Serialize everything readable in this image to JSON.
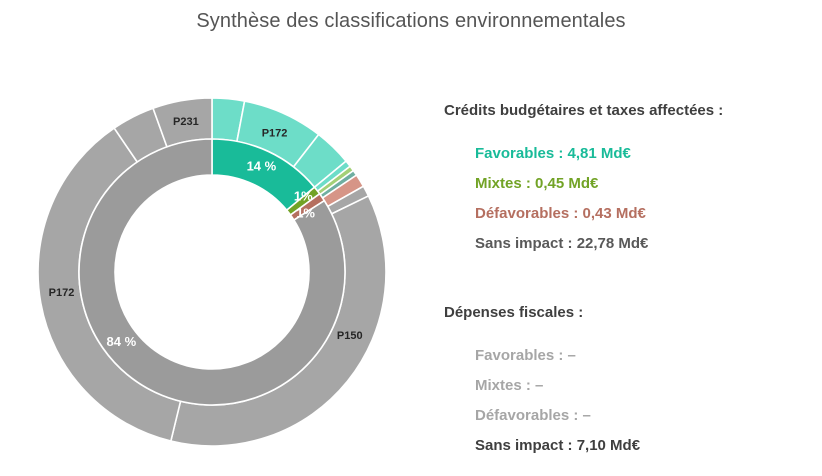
{
  "title": "Synthèse des classifications environnementales",
  "chart_data": [
    {
      "type": "pie",
      "variant": "donut-inner-ring",
      "series_name": "",
      "segments": [
        {
          "label": "14 %",
          "value": 14,
          "color": "#19BB99"
        },
        {
          "label": "1%",
          "value": 1,
          "color": "#72A326"
        },
        {
          "label": "1%",
          "value": 1,
          "color": "#B56F60"
        },
        {
          "label": "84 %",
          "value": 84,
          "color": "#9B9B9B"
        }
      ]
    },
    {
      "type": "pie",
      "variant": "donut-outer-ring",
      "segments": [
        {
          "label": "",
          "value": 3.0,
          "color": "#6DDDC8"
        },
        {
          "label": "P172",
          "value": 7.5,
          "color": "#6DDDC8"
        },
        {
          "label": "",
          "value": 3.5,
          "color": "#6DDDC8"
        },
        {
          "label": "",
          "value": 0.6,
          "color": "#6DDDC8"
        },
        {
          "label": "",
          "value": 0.5,
          "color": "#A3D077"
        },
        {
          "label": "",
          "value": 0.5,
          "color": "#6FAFA1"
        },
        {
          "label": "",
          "value": 1.2,
          "color": "#D69587"
        },
        {
          "label": "",
          "value": 1.0,
          "color": "#A6A6A6"
        },
        {
          "label": "P150",
          "value": 36.0,
          "color": "#A6A6A6"
        },
        {
          "label": "P172",
          "value": 36.7,
          "color": "#A6A6A6"
        },
        {
          "label": "",
          "value": 4.0,
          "color": "#A6A6A6"
        },
        {
          "label": "P231",
          "value": 5.5,
          "color": "#A6A6A6"
        }
      ]
    }
  ],
  "legend": {
    "credits": {
      "title": "Crédits budgétaires et taxes affectées :",
      "items": [
        {
          "text": "Favorables : 4,81 Md€",
          "color": "#19BB99"
        },
        {
          "text": "Mixtes : 0,45 Md€",
          "color": "#72A326"
        },
        {
          "text": "Défavorables : 0,43 Md€",
          "color": "#B56F60"
        },
        {
          "text": "Sans impact : 22,78 Md€",
          "color": "#595959"
        }
      ]
    },
    "fiscal": {
      "title": "Dépenses fiscales :",
      "items": [
        {
          "text": "Favorables : –",
          "color": "#A6A6A6"
        },
        {
          "text": "Mixtes : –",
          "color": "#A6A6A6"
        },
        {
          "text": "Défavorables : –",
          "color": "#A6A6A6"
        },
        {
          "text": "Sans impact : 7,10 Md€",
          "color": "#3F3F3F"
        }
      ]
    }
  }
}
